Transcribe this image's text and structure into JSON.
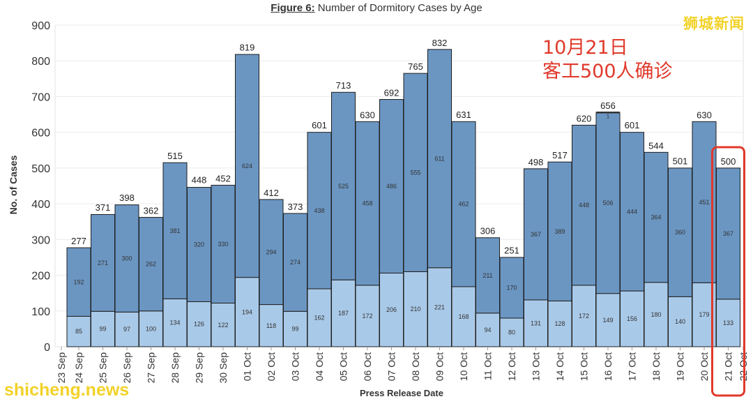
{
  "title": {
    "label": "Figure 6:",
    "text": "Number of Dormitory Cases by Age"
  },
  "annotation": {
    "line1": "10月21日",
    "line2": "客工500人确诊",
    "color": "#e0392b"
  },
  "watermarks": {
    "top_right": "狮城新闻",
    "bottom_left": "shicheng.news"
  },
  "chart_data": {
    "type": "bar",
    "stacked": true,
    "title": "Number of Dormitory Cases by Age",
    "xlabel": "Press Release Date",
    "ylabel": "No. of Cases",
    "ylim": [
      0,
      900
    ],
    "yticks": [
      0,
      100,
      200,
      300,
      400,
      500,
      600,
      700,
      800,
      900
    ],
    "grid": true,
    "categories": [
      "24 Sep",
      "25 Sep",
      "26 Sep",
      "27 Sep",
      "28 Sep",
      "29 Sep",
      "30 Sep",
      "01 Oct",
      "02 Oct",
      "03 Oct",
      "04 Oct",
      "05 Oct",
      "06 Oct",
      "07 Oct",
      "08 Oct",
      "09 Oct",
      "10 Oct",
      "11 Oct",
      "12 Oct",
      "13 Oct",
      "14 Oct",
      "15 Oct",
      "16 Oct",
      "17 Oct",
      "18 Oct",
      "19 Oct",
      "20 Oct",
      "21 Oct"
    ],
    "x_edge_labels": [
      "23 Sep",
      "22 Oct"
    ],
    "totals": [
      277,
      371,
      398,
      362,
      515,
      448,
      452,
      819,
      412,
      373,
      601,
      713,
      630,
      692,
      765,
      832,
      631,
      306,
      251,
      498,
      517,
      620,
      656,
      601,
      544,
      501,
      630,
      500
    ],
    "series": [
      {
        "values": [
          85,
          99,
          97,
          100,
          134,
          126,
          122,
          194,
          118,
          99,
          162,
          187,
          172,
          206,
          210,
          221,
          168,
          94,
          80,
          131,
          128,
          172,
          149,
          156,
          180,
          140,
          179,
          133
        ],
        "color": "#a9c9e8"
      },
      {
        "values": [
          192,
          271,
          300,
          262,
          381,
          320,
          330,
          624,
          294,
          274,
          438,
          525,
          458,
          486,
          555,
          611,
          462,
          211,
          170,
          367,
          389,
          448,
          506,
          444,
          364,
          360,
          451,
          367
        ],
        "color": "#6b96c2"
      }
    ],
    "extra_segments": [
      {
        "category": "16 Oct",
        "value": 1,
        "color": "#333333"
      }
    ],
    "highlight": {
      "category": "21 Oct",
      "color": "#e0392b"
    }
  }
}
